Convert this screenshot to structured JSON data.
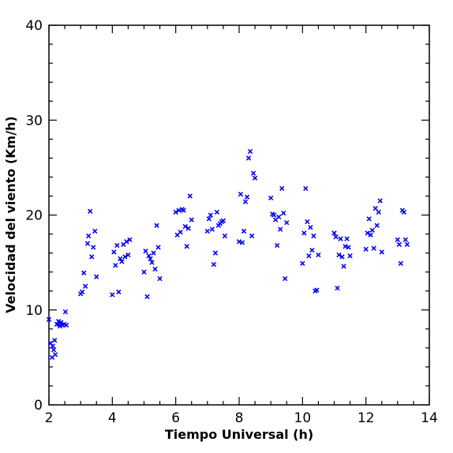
{
  "chart_data": {
    "type": "scatter",
    "title": "",
    "xlabel": "Tiempo Universal (h)",
    "ylabel": "Velocidad del viento (Km/h)",
    "xlim": [
      2,
      14
    ],
    "ylim": [
      0,
      40
    ],
    "x_ticks": [
      2,
      4,
      6,
      8,
      10,
      12,
      14
    ],
    "y_ticks": [
      0,
      10,
      20,
      30,
      40
    ],
    "grid": false,
    "legend": "none",
    "marker": "x",
    "color": "#0000ff",
    "series": [
      {
        "x": [
          2.0,
          2.05,
          2.1,
          2.12,
          2.15,
          2.18,
          2.2,
          2.25,
          2.3,
          2.32,
          2.35,
          2.38,
          2.42,
          2.48,
          2.52,
          2.55,
          3.0,
          3.05,
          3.1,
          3.15,
          3.22,
          3.25,
          3.3,
          3.35,
          3.4,
          3.45,
          3.5,
          4.0,
          4.05,
          4.1,
          4.15,
          4.2,
          4.25,
          4.3,
          4.35,
          4.4,
          4.45,
          4.5,
          4.55,
          5.0,
          5.05,
          5.1,
          5.15,
          5.2,
          5.25,
          5.3,
          5.35,
          5.4,
          5.45,
          5.5,
          6.0,
          6.05,
          6.1,
          6.15,
          6.2,
          6.25,
          6.3,
          6.35,
          6.4,
          6.45,
          6.5,
          7.0,
          7.05,
          7.1,
          7.15,
          7.2,
          7.25,
          7.3,
          7.35,
          7.4,
          7.45,
          7.5,
          7.55,
          8.0,
          8.05,
          8.1,
          8.15,
          8.2,
          8.25,
          8.3,
          8.35,
          8.4,
          8.45,
          8.5,
          9.0,
          9.05,
          9.1,
          9.15,
          9.2,
          9.25,
          9.3,
          9.35,
          9.4,
          9.45,
          9.5,
          10.0,
          10.05,
          10.1,
          10.15,
          10.2,
          10.25,
          10.3,
          10.35,
          10.4,
          10.45,
          10.5,
          11.0,
          11.05,
          11.1,
          11.15,
          11.2,
          11.25,
          11.3,
          11.35,
          11.4,
          11.45,
          11.5,
          12.0,
          12.05,
          12.1,
          12.15,
          12.2,
          12.25,
          12.3,
          12.35,
          12.4,
          12.45,
          12.5,
          13.0,
          13.05,
          13.1,
          13.15,
          13.2,
          13.25,
          13.3
        ],
        "y": [
          9.0,
          6.5,
          5.0,
          6.2,
          5.8,
          6.8,
          5.3,
          8.5,
          8.8,
          8.5,
          8.3,
          8.7,
          8.4,
          8.5,
          9.8,
          8.4,
          11.7,
          11.9,
          13.9,
          12.5,
          17.0,
          17.8,
          20.4,
          15.6,
          16.6,
          18.3,
          13.5,
          11.6,
          16.1,
          14.7,
          16.8,
          11.9,
          15.4,
          15.1,
          16.9,
          15.6,
          17.2,
          15.8,
          17.4,
          14.0,
          16.2,
          11.4,
          15.7,
          15.4,
          15.0,
          16.0,
          14.3,
          18.9,
          16.6,
          13.3,
          20.3,
          17.9,
          20.5,
          18.2,
          20.6,
          20.5,
          18.8,
          16.7,
          18.6,
          22.0,
          19.5,
          18.3,
          19.6,
          20.0,
          18.5,
          14.8,
          16.0,
          20.3,
          18.9,
          19.1,
          19.3,
          19.4,
          17.8,
          17.2,
          22.2,
          17.1,
          18.3,
          21.4,
          21.9,
          26.0,
          26.7,
          17.8,
          24.4,
          23.9,
          21.8,
          20.1,
          20.0,
          19.5,
          16.8,
          19.8,
          18.5,
          22.8,
          20.2,
          13.3,
          19.2,
          14.9,
          18.1,
          22.8,
          19.3,
          15.7,
          18.7,
          16.3,
          17.8,
          12.0,
          12.1,
          15.8,
          18.1,
          17.7,
          12.3,
          15.8,
          17.5,
          15.6,
          14.6,
          16.7,
          17.5,
          16.6,
          15.7,
          16.4,
          18.1,
          19.6,
          17.9,
          18.4,
          16.5,
          20.7,
          18.9,
          20.3,
          21.5,
          16.1,
          17.4,
          16.9,
          14.9,
          20.5,
          20.3,
          17.4,
          16.9
        ]
      }
    ]
  }
}
